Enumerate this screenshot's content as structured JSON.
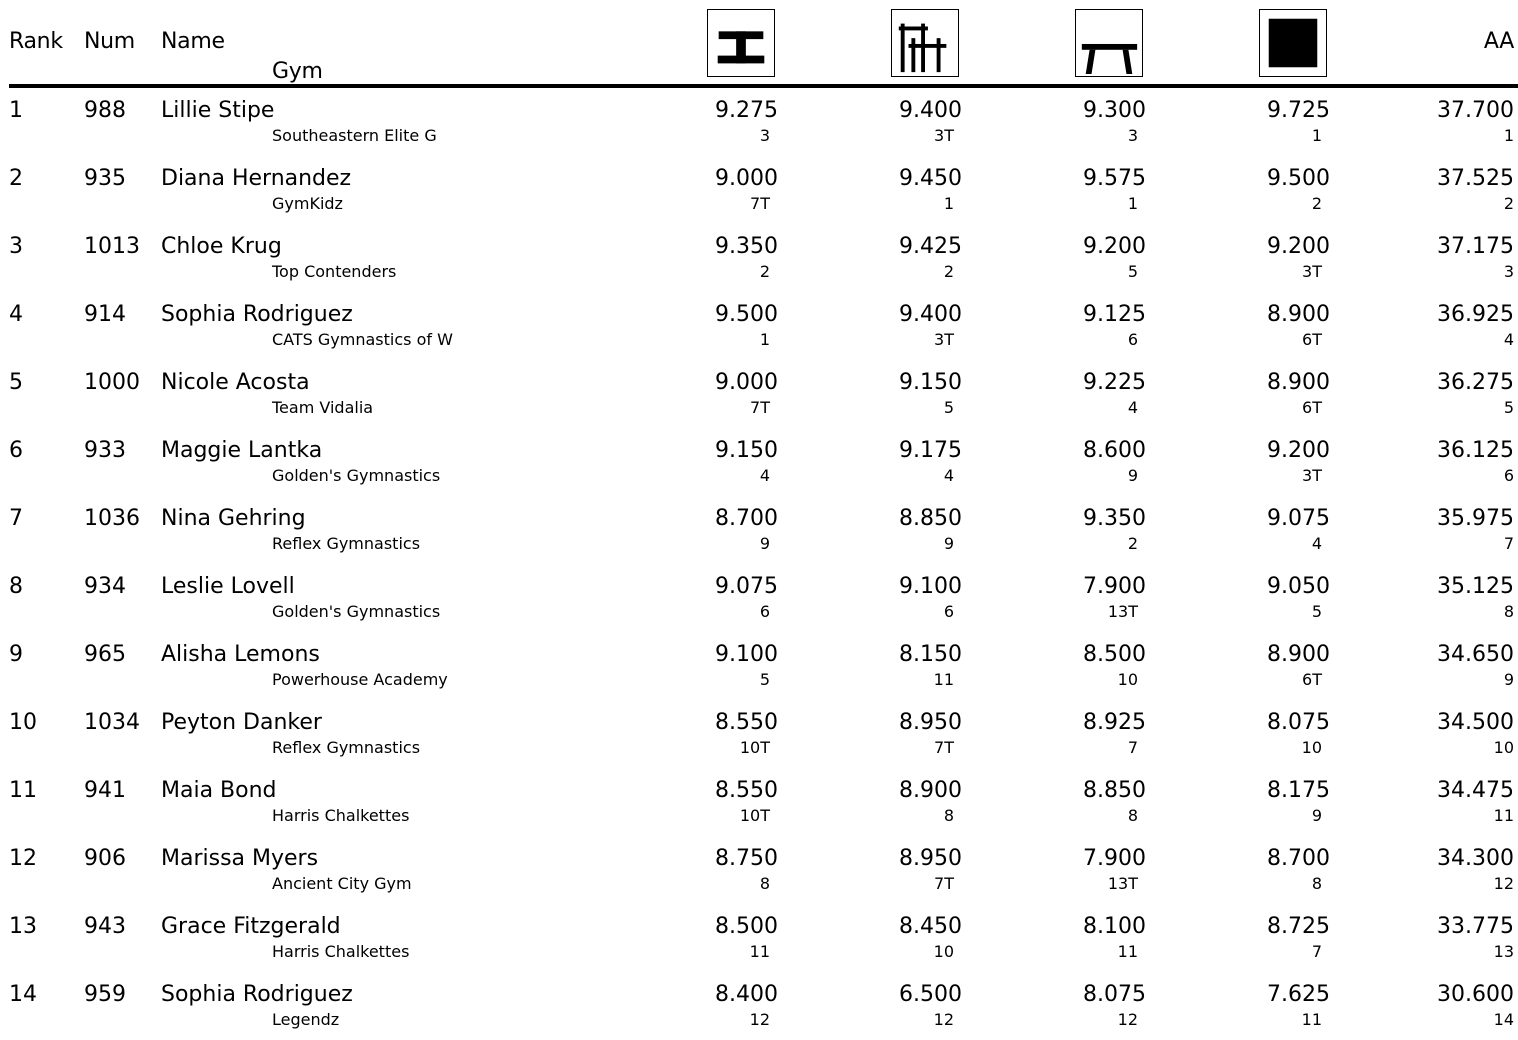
{
  "header": {
    "rank": "Rank",
    "num": "Num",
    "name": "Name",
    "gym": "Gym",
    "aa": "AA",
    "events": [
      {
        "icon": "vault-icon"
      },
      {
        "icon": "uneven-bars-icon"
      },
      {
        "icon": "balance-beam-icon"
      },
      {
        "icon": "floor-exercise-icon"
      }
    ]
  },
  "rows": [
    {
      "rank": "1",
      "num": "988",
      "name": "Lillie Stipe",
      "gym": "Southeastern Elite G",
      "vault": "9.275",
      "vault_rank": "3",
      "bars": "9.400",
      "bars_rank": "3T",
      "beam": "9.300",
      "beam_rank": "3",
      "floor": "9.725",
      "floor_rank": "1",
      "aa": "37.700",
      "aa_rank": "1"
    },
    {
      "rank": "2",
      "num": "935",
      "name": "Diana Hernandez",
      "gym": "GymKidz",
      "vault": "9.000",
      "vault_rank": "7T",
      "bars": "9.450",
      "bars_rank": "1",
      "beam": "9.575",
      "beam_rank": "1",
      "floor": "9.500",
      "floor_rank": "2",
      "aa": "37.525",
      "aa_rank": "2"
    },
    {
      "rank": "3",
      "num": "1013",
      "name": "Chloe Krug",
      "gym": "Top Contenders",
      "vault": "9.350",
      "vault_rank": "2",
      "bars": "9.425",
      "bars_rank": "2",
      "beam": "9.200",
      "beam_rank": "5",
      "floor": "9.200",
      "floor_rank": "3T",
      "aa": "37.175",
      "aa_rank": "3"
    },
    {
      "rank": "4",
      "num": "914",
      "name": "Sophia Rodriguez",
      "gym": "CATS Gymnastics of W",
      "vault": "9.500",
      "vault_rank": "1",
      "bars": "9.400",
      "bars_rank": "3T",
      "beam": "9.125",
      "beam_rank": "6",
      "floor": "8.900",
      "floor_rank": "6T",
      "aa": "36.925",
      "aa_rank": "4"
    },
    {
      "rank": "5",
      "num": "1000",
      "name": "Nicole Acosta",
      "gym": "Team Vidalia",
      "vault": "9.000",
      "vault_rank": "7T",
      "bars": "9.150",
      "bars_rank": "5",
      "beam": "9.225",
      "beam_rank": "4",
      "floor": "8.900",
      "floor_rank": "6T",
      "aa": "36.275",
      "aa_rank": "5"
    },
    {
      "rank": "6",
      "num": "933",
      "name": "Maggie Lantka",
      "gym": "Golden's Gymnastics",
      "vault": "9.150",
      "vault_rank": "4",
      "bars": "9.175",
      "bars_rank": "4",
      "beam": "8.600",
      "beam_rank": "9",
      "floor": "9.200",
      "floor_rank": "3T",
      "aa": "36.125",
      "aa_rank": "6"
    },
    {
      "rank": "7",
      "num": "1036",
      "name": "Nina Gehring",
      "gym": "Reflex Gymnastics",
      "vault": "8.700",
      "vault_rank": "9",
      "bars": "8.850",
      "bars_rank": "9",
      "beam": "9.350",
      "beam_rank": "2",
      "floor": "9.075",
      "floor_rank": "4",
      "aa": "35.975",
      "aa_rank": "7"
    },
    {
      "rank": "8",
      "num": "934",
      "name": "Leslie Lovell",
      "gym": "Golden's Gymnastics",
      "vault": "9.075",
      "vault_rank": "6",
      "bars": "9.100",
      "bars_rank": "6",
      "beam": "7.900",
      "beam_rank": "13T",
      "floor": "9.050",
      "floor_rank": "5",
      "aa": "35.125",
      "aa_rank": "8"
    },
    {
      "rank": "9",
      "num": "965",
      "name": "Alisha Lemons",
      "gym": "Powerhouse Academy",
      "vault": "9.100",
      "vault_rank": "5",
      "bars": "8.150",
      "bars_rank": "11",
      "beam": "8.500",
      "beam_rank": "10",
      "floor": "8.900",
      "floor_rank": "6T",
      "aa": "34.650",
      "aa_rank": "9"
    },
    {
      "rank": "10",
      "num": "1034",
      "name": "Peyton Danker",
      "gym": "Reflex Gymnastics",
      "vault": "8.550",
      "vault_rank": "10T",
      "bars": "8.950",
      "bars_rank": "7T",
      "beam": "8.925",
      "beam_rank": "7",
      "floor": "8.075",
      "floor_rank": "10",
      "aa": "34.500",
      "aa_rank": "10"
    },
    {
      "rank": "11",
      "num": "941",
      "name": "Maia Bond",
      "gym": "Harris Chalkettes",
      "vault": "8.550",
      "vault_rank": "10T",
      "bars": "8.900",
      "bars_rank": "8",
      "beam": "8.850",
      "beam_rank": "8",
      "floor": "8.175",
      "floor_rank": "9",
      "aa": "34.475",
      "aa_rank": "11"
    },
    {
      "rank": "12",
      "num": "906",
      "name": "Marissa Myers",
      "gym": "Ancient City Gym",
      "vault": "8.750",
      "vault_rank": "8",
      "bars": "8.950",
      "bars_rank": "7T",
      "beam": "7.900",
      "beam_rank": "13T",
      "floor": "8.700",
      "floor_rank": "8",
      "aa": "34.300",
      "aa_rank": "12"
    },
    {
      "rank": "13",
      "num": "943",
      "name": "Grace Fitzgerald",
      "gym": "Harris Chalkettes",
      "vault": "8.500",
      "vault_rank": "11",
      "bars": "8.450",
      "bars_rank": "10",
      "beam": "8.100",
      "beam_rank": "11",
      "floor": "8.725",
      "floor_rank": "7",
      "aa": "33.775",
      "aa_rank": "13"
    },
    {
      "rank": "14",
      "num": "959",
      "name": "Sophia Rodriguez",
      "gym": "Legendz",
      "vault": "8.400",
      "vault_rank": "12",
      "bars": "6.500",
      "bars_rank": "12",
      "beam": "8.075",
      "beam_rank": "12",
      "floor": "7.625",
      "floor_rank": "11",
      "aa": "30.600",
      "aa_rank": "14"
    }
  ]
}
